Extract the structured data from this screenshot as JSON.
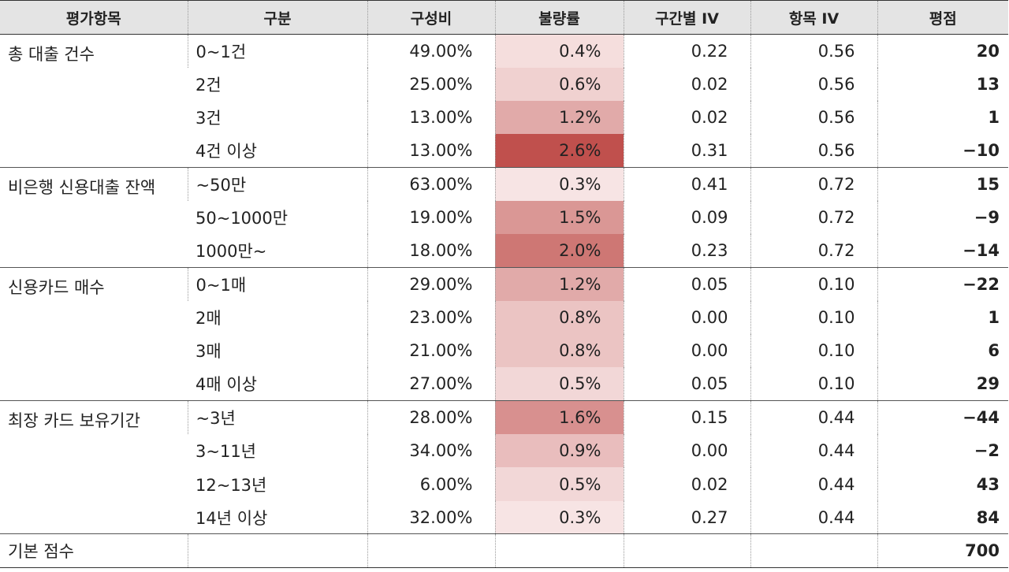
{
  "headers": [
    "평가항목",
    "구분",
    "구성비",
    "불량률",
    "구간별 IV",
    "항목 IV",
    "평점"
  ],
  "groups": [
    {
      "name": "총 대출 건수",
      "rows": [
        {
          "cat": "0~1건",
          "ratio": "49.00%",
          "bad": "0.4%",
          "bad_value": 0.4,
          "iv": "0.22",
          "item_iv": "0.56",
          "score": "20"
        },
        {
          "cat": "2건",
          "ratio": "25.00%",
          "bad": "0.6%",
          "bad_value": 0.6,
          "iv": "0.02",
          "item_iv": "0.56",
          "score": "13"
        },
        {
          "cat": "3건",
          "ratio": "13.00%",
          "bad": "1.2%",
          "bad_value": 1.2,
          "iv": "0.02",
          "item_iv": "0.56",
          "score": "1"
        },
        {
          "cat": "4건 이상",
          "ratio": "13.00%",
          "bad": "2.6%",
          "bad_value": 2.6,
          "iv": "0.31",
          "item_iv": "0.56",
          "score": "−10"
        }
      ]
    },
    {
      "name": "비은행 신용대출 잔액",
      "rows": [
        {
          "cat": "~50만",
          "ratio": "63.00%",
          "bad": "0.3%",
          "bad_value": 0.3,
          "iv": "0.41",
          "item_iv": "0.72",
          "score": "15"
        },
        {
          "cat": "50~1000만",
          "ratio": "19.00%",
          "bad": "1.5%",
          "bad_value": 1.5,
          "iv": "0.09",
          "item_iv": "0.72",
          "score": "−9"
        },
        {
          "cat": "1000만~",
          "ratio": "18.00%",
          "bad": "2.0%",
          "bad_value": 2.0,
          "iv": "0.23",
          "item_iv": "0.72",
          "score": "−14"
        }
      ]
    },
    {
      "name": "신용카드 매수",
      "rows": [
        {
          "cat": "0~1매",
          "ratio": "29.00%",
          "bad": "1.2%",
          "bad_value": 1.2,
          "iv": "0.05",
          "item_iv": "0.10",
          "score": "−22"
        },
        {
          "cat": "2매",
          "ratio": "23.00%",
          "bad": "0.8%",
          "bad_value": 0.8,
          "iv": "0.00",
          "item_iv": "0.10",
          "score": "1"
        },
        {
          "cat": "3매",
          "ratio": "21.00%",
          "bad": "0.8%",
          "bad_value": 0.8,
          "iv": "0.00",
          "item_iv": "0.10",
          "score": "6"
        },
        {
          "cat": "4매 이상",
          "ratio": "27.00%",
          "bad": "0.5%",
          "bad_value": 0.5,
          "iv": "0.05",
          "item_iv": "0.10",
          "score": "29"
        }
      ]
    },
    {
      "name": "최장 카드 보유기간",
      "rows": [
        {
          "cat": "~3년",
          "ratio": "28.00%",
          "bad": "1.6%",
          "bad_value": 1.6,
          "iv": "0.15",
          "item_iv": "0.44",
          "score": "−44"
        },
        {
          "cat": "3~11년",
          "ratio": "34.00%",
          "bad": "0.9%",
          "bad_value": 0.9,
          "iv": "0.00",
          "item_iv": "0.44",
          "score": "−2"
        },
        {
          "cat": "12~13년",
          "ratio": "6.00%",
          "bad": "0.5%",
          "bad_value": 0.5,
          "iv": "0.02",
          "item_iv": "0.44",
          "score": "43"
        },
        {
          "cat": "14년 이상",
          "ratio": "32.00%",
          "bad": "0.3%",
          "bad_value": 0.3,
          "iv": "0.27",
          "item_iv": "0.44",
          "score": "84"
        }
      ]
    }
  ],
  "base": {
    "label": "기본 점수",
    "score": "700"
  },
  "heat_colors": {
    "low": "#f7e4e4",
    "high": "#c0504d"
  }
}
